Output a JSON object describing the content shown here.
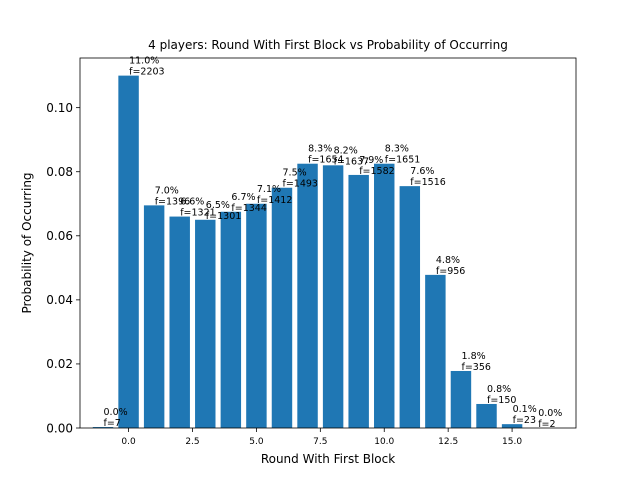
{
  "chart_data": {
    "type": "bar",
    "title": "4 players: Round With First Block vs Probability of Occurring",
    "xlabel": "Round With First Block",
    "ylabel": "Probability of Occurring",
    "xlim": [
      -1.9,
      17.5
    ],
    "ylim": [
      0,
      0.1155
    ],
    "x_ticks": [
      "0.0",
      "2.5",
      "5.0",
      "7.5",
      "10.0",
      "12.5",
      "15.0"
    ],
    "y_ticks": [
      "0.00",
      "0.02",
      "0.04",
      "0.06",
      "0.08",
      "0.10"
    ],
    "bar_color": "#1f77b4",
    "x": [
      -1,
      0,
      1,
      2,
      3,
      4,
      5,
      6,
      7,
      8,
      9,
      10,
      11,
      12,
      13,
      14,
      15,
      16,
      17
    ],
    "values": [
      0.0003,
      0.11,
      0.0695,
      0.066,
      0.065,
      0.0675,
      0.07,
      0.075,
      0.0825,
      0.082,
      0.079,
      0.0825,
      0.0755,
      0.0478,
      0.0178,
      0.0075,
      0.0012,
      0.0,
      0.0
    ],
    "label_pct": [
      "0.0%",
      "11.0%",
      "7.0%",
      "6.6%",
      "6.5%",
      "6.7%",
      "7.1%",
      "7.5%",
      "8.3%",
      "8.2%",
      "7.9%",
      "8.3%",
      "7.6%",
      "4.8%",
      "1.8%",
      "0.8%",
      "0.1%",
      "0.0%",
      ""
    ],
    "label_freq": [
      "f=7",
      "f=2203",
      "f=1396",
      "f=1321",
      "f=1301",
      "f=1344",
      "f=1412",
      "f=1493",
      "f=1654",
      "f=1637",
      "f=1582",
      "f=1651",
      "f=1516",
      "f=956",
      "f=356",
      "f=150",
      "f=23",
      "f=2",
      ""
    ]
  }
}
